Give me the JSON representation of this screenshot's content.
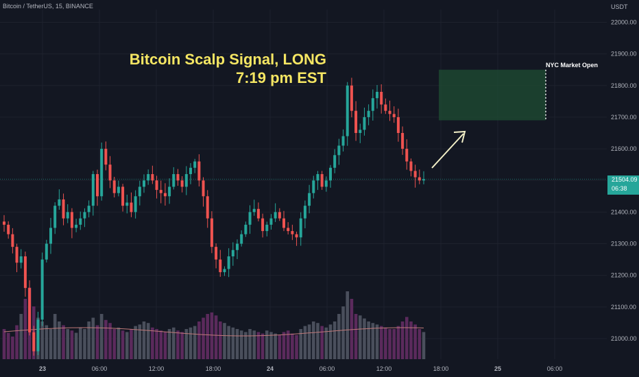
{
  "header": {
    "symbol_line": "Bitcoin / TetherUS, 15, BINANCE"
  },
  "axis_unit": "USDT",
  "annotations": {
    "title_line1": "Bitcoin Scalp Signal, LONG",
    "title_line2": "7:19 pm EST",
    "nyc_label": "NYC Market Open"
  },
  "current_price": {
    "price": "21504.09",
    "countdown": "06:38"
  },
  "colors": {
    "background": "#131722",
    "up": "#26a69a",
    "down": "#ef5350",
    "title": "#f5e663",
    "zone": "#1e4a32",
    "volume_up": "#4a4f5c",
    "volume_down": "#5b2a5c",
    "ma": "#c07a7a"
  },
  "chart_data": {
    "type": "candlestick",
    "y_ticks": [
      "22000.00",
      "21900.00",
      "21800.00",
      "21700.00",
      "21600.00",
      "21500.00",
      "21400.00",
      "21300.00",
      "21200.00",
      "21100.00",
      "21000.00"
    ],
    "ylim": [
      20935,
      22040
    ],
    "x_ticks": [
      "23",
      "06:00",
      "12:00",
      "18:00",
      "24",
      "06:00",
      "12:00",
      "18:00",
      "25",
      "06:00"
    ],
    "target_zone": {
      "low": 21690,
      "high": 21850
    },
    "close_sequence": [
      21360,
      21330,
      21290,
      21240,
      21260,
      21160,
      21020,
      20960,
      21060,
      21250,
      21300,
      21350,
      21420,
      21440,
      21380,
      21400,
      21350,
      21360,
      21380,
      21400,
      21420,
      21520,
      21450,
      21600,
      21550,
      21500,
      21460,
      21480,
      21420,
      21430,
      21400,
      21450,
      21480,
      21500,
      21520,
      21500,
      21470,
      21460,
      21450,
      21480,
      21520,
      21500,
      21480,
      21520,
      21540,
      21560,
      21500,
      21450,
      21380,
      21290,
      21250,
      21210,
      21220,
      21260,
      21280,
      21300,
      21330,
      21360,
      21400,
      21410,
      21380,
      21340,
      21360,
      21380,
      21400,
      21380,
      21350,
      21340,
      21330,
      21320,
      21380,
      21420,
      21460,
      21500,
      21520,
      21480,
      21500,
      21540,
      21580,
      21610,
      21640,
      21800,
      21720,
      21650,
      21660,
      21700,
      21720,
      21760,
      21780,
      21740,
      21720,
      21710,
      21700,
      21650,
      21600,
      21560,
      21530,
      21510,
      21500,
      21504
    ],
    "volume_sequence": [
      40,
      35,
      30,
      45,
      60,
      80,
      95,
      70,
      55,
      50,
      45,
      40,
      60,
      50,
      45,
      40,
      38,
      35,
      42,
      40,
      50,
      55,
      45,
      60,
      52,
      48,
      40,
      42,
      38,
      36,
      40,
      44,
      46,
      50,
      48,
      42,
      40,
      38,
      36,
      40,
      42,
      38,
      36,
      40,
      42,
      44,
      50,
      55,
      60,
      62,
      58,
      50,
      48,
      44,
      42,
      40,
      38,
      36,
      40,
      38,
      36,
      34,
      38,
      36,
      34,
      32,
      36,
      38,
      34,
      32,
      40,
      44,
      46,
      50,
      48,
      44,
      42,
      46,
      50,
      60,
      70,
      90,
      80,
      60,
      58,
      54,
      50,
      48,
      46,
      44,
      42,
      40,
      40,
      44,
      50,
      56,
      50,
      46,
      40,
      36
    ]
  }
}
